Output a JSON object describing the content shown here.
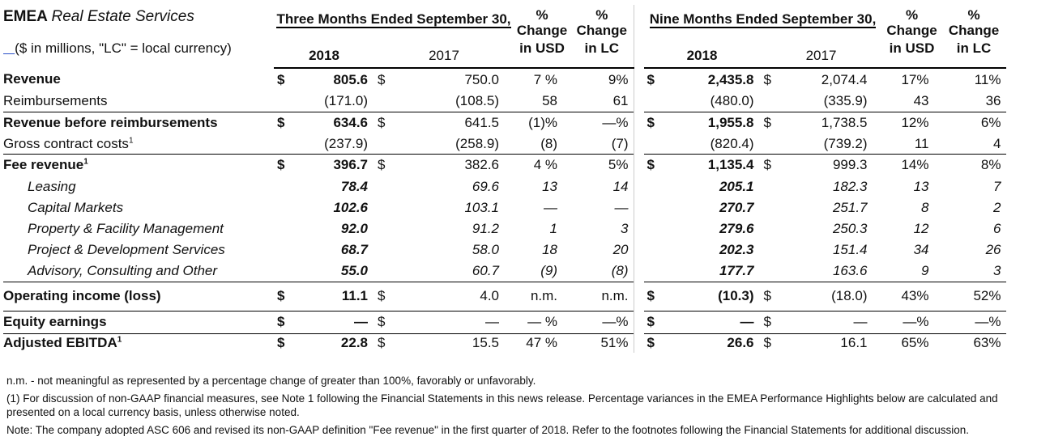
{
  "header": {
    "title_bold": "EMEA",
    "title_italic": "Real Estate Services",
    "units_note": "($ in millions, \"LC\" = local currency)",
    "three_months": "Three Months Ended September 30,",
    "nine_months": "Nine Months Ended September 30,",
    "year_current": "2018",
    "year_prior": "2017",
    "pct_label": "%",
    "change_usd_1": "Change",
    "change_usd_2": "in USD",
    "change_lc_1": "Change",
    "change_lc_2": "in LC"
  },
  "rows": [
    {
      "label": "Revenue",
      "style": "bold",
      "sym1": "$",
      "q18": "805.6",
      "sym2": "$",
      "q17": "750.0",
      "qusd": "7 %",
      "qlc": "9%",
      "sym3": "$",
      "n18": "2,435.8",
      "sym4": "$",
      "n17": "2,074.4",
      "nusd": "17%",
      "nlc": "11%"
    },
    {
      "label": "Reimbursements",
      "style": "normal",
      "sym1": "",
      "q18": "(171.0)",
      "sym2": "",
      "q17": "(108.5)",
      "qusd": "58",
      "qlc": "61",
      "sym3": "",
      "n18": "(480.0)",
      "sym4": "",
      "n17": "(335.9)",
      "nusd": "43",
      "nlc": "36"
    },
    {
      "label": "Revenue before reimbursements",
      "style": "bold",
      "sym1": "$",
      "q18": "634.6",
      "sym2": "$",
      "q17": "641.5",
      "qusd": "(1)%",
      "qlc": "—%",
      "sym3": "$",
      "n18": "1,955.8",
      "sym4": "$",
      "n17": "1,738.5",
      "nusd": "12%",
      "nlc": "6%"
    },
    {
      "label": "Gross contract costs",
      "sup": "1",
      "style": "normal",
      "sym1": "",
      "q18": "(237.9)",
      "sym2": "",
      "q17": "(258.9)",
      "qusd": "(8)",
      "qlc": "(7)",
      "sym3": "",
      "n18": "(820.4)",
      "sym4": "",
      "n17": "(739.2)",
      "nusd": "11",
      "nlc": "4"
    },
    {
      "label": "Fee revenue",
      "sup": "1",
      "style": "bold",
      "sym1": "$",
      "q18": "396.7",
      "sym2": "$",
      "q17": "382.6",
      "qusd": "4 %",
      "qlc": "5%",
      "sym3": "$",
      "n18": "1,135.4",
      "sym4": "$",
      "n17": "999.3",
      "nusd": "14%",
      "nlc": "8%"
    },
    {
      "label": "Leasing",
      "style": "sub",
      "sym1": "",
      "q18": "78.4",
      "sym2": "",
      "q17": "69.6",
      "qusd": "13",
      "qlc": "14",
      "sym3": "",
      "n18": "205.1",
      "sym4": "",
      "n17": "182.3",
      "nusd": "13",
      "nlc": "7"
    },
    {
      "label": "Capital Markets",
      "style": "sub",
      "sym1": "",
      "q18": "102.6",
      "sym2": "",
      "q17": "103.1",
      "qusd": "—",
      "qlc": "—",
      "sym3": "",
      "n18": "270.7",
      "sym4": "",
      "n17": "251.7",
      "nusd": "8",
      "nlc": "2"
    },
    {
      "label": "Property & Facility Management",
      "style": "sub",
      "sym1": "",
      "q18": "92.0",
      "sym2": "",
      "q17": "91.2",
      "qusd": "1",
      "qlc": "3",
      "sym3": "",
      "n18": "279.6",
      "sym4": "",
      "n17": "250.3",
      "nusd": "12",
      "nlc": "6"
    },
    {
      "label": "Project & Development Services",
      "style": "sub",
      "sym1": "",
      "q18": "68.7",
      "sym2": "",
      "q17": "58.0",
      "qusd": "18",
      "qlc": "20",
      "sym3": "",
      "n18": "202.3",
      "sym4": "",
      "n17": "151.4",
      "nusd": "34",
      "nlc": "26"
    },
    {
      "label": "Advisory, Consulting and Other",
      "style": "sub",
      "sym1": "",
      "q18": "55.0",
      "sym2": "",
      "q17": "60.7",
      "qusd": "(9)",
      "qlc": "(8)",
      "sym3": "",
      "n18": "177.7",
      "sym4": "",
      "n17": "163.6",
      "nusd": "9",
      "nlc": "3"
    },
    {
      "label": "Operating income (loss)",
      "style": "bold",
      "sym1": "$",
      "q18": "11.1",
      "sym2": "$",
      "q17": "4.0",
      "qusd": "n.m.",
      "qlc": "n.m.",
      "sym3": "$",
      "n18": "(10.3)",
      "sym4": "$",
      "n17": "(18.0)",
      "nusd": "43%",
      "nlc": "52%"
    },
    {
      "label": "Equity earnings",
      "style": "bold",
      "sym1": "$",
      "q18": "—",
      "sym2": "$",
      "q17": "—",
      "qusd": "— %",
      "qlc": "—%",
      "sym3": "$",
      "n18": "—",
      "sym4": "$",
      "n17": "—",
      "nusd": "—%",
      "nlc": "—%"
    },
    {
      "label": "Adjusted EBITDA",
      "sup": "1",
      "style": "bold",
      "sym1": "$",
      "q18": "22.8",
      "sym2": "$",
      "q17": "15.5",
      "qusd": "47 %",
      "qlc": "51%",
      "sym3": "$",
      "n18": "26.6",
      "sym4": "$",
      "n17": "16.1",
      "nusd": "65%",
      "nlc": "63%"
    }
  ],
  "notes": {
    "nm": "n.m. - not meaningful as represented by a percentage change of greater than 100%, favorably or unfavorably.",
    "footnote1": "(1) For discussion of non-GAAP financial measures, see Note 1 following the Financial Statements in this news release. Percentage variances in the EMEA Performance Highlights below are calculated and presented on a local currency basis, unless otherwise noted.",
    "asc606": "Note: The company adopted ASC 606 and revised its non-GAAP definition \"Fee revenue\" in the first quarter of 2018. Refer to the footnotes following the Financial Statements for additional discussion."
  }
}
